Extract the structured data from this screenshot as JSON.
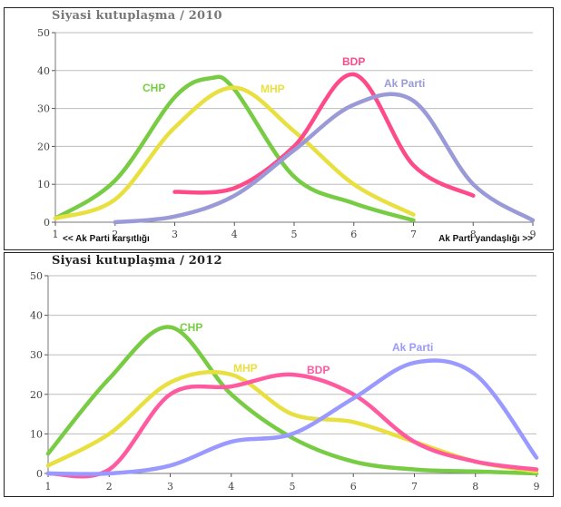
{
  "chart_data": [
    {
      "type": "line",
      "title": "Siyasi kutuplaşma / 2010",
      "ylim": [
        0,
        50
      ],
      "yticks": [
        0,
        10,
        20,
        30,
        40,
        50
      ],
      "xlim": [
        1,
        9
      ],
      "xticks": [
        1,
        2,
        3,
        4,
        5,
        6,
        7,
        8,
        9
      ],
      "annotations": {
        "left": "<< Ak Parti karşıtlığı",
        "right": "Ak Parti yandaşlığı >>"
      },
      "series": [
        {
          "name": "CHP",
          "color": "#77cc44",
          "x": [
            1,
            2,
            3,
            3.6,
            4,
            5,
            6,
            7
          ],
          "y": [
            1,
            11,
            33,
            38,
            35,
            12,
            5,
            0.5
          ]
        },
        {
          "name": "MHP",
          "color": "#e8e040",
          "x": [
            1,
            2,
            3,
            4,
            5,
            6,
            7
          ],
          "y": [
            1,
            6,
            25,
            35.5,
            24,
            10,
            2
          ]
        },
        {
          "name": "BDP",
          "color": "#ff4a8a",
          "x": [
            3,
            4,
            5,
            6,
            7,
            8
          ],
          "y": [
            8,
            9,
            20,
            39,
            15,
            7
          ]
        },
        {
          "name": "Ak Parti",
          "color": "#9a9ad8",
          "x": [
            2,
            3,
            4,
            5,
            6,
            7,
            8,
            9
          ],
          "y": [
            0,
            1.5,
            7,
            19,
            31,
            32,
            10,
            0.5
          ]
        }
      ]
    },
    {
      "type": "line",
      "title": "Siyasi kutuplaşma / 2012",
      "ylim": [
        0,
        50
      ],
      "yticks": [
        0,
        10,
        20,
        30,
        40,
        50
      ],
      "xlim": [
        1,
        9
      ],
      "xticks": [
        1,
        2,
        3,
        4,
        5,
        6,
        7,
        8,
        9
      ],
      "series": [
        {
          "name": "CHP",
          "color": "#77cc44",
          "x": [
            1,
            2,
            3,
            4,
            5,
            6,
            7,
            8,
            9
          ],
          "y": [
            5,
            24,
            37,
            20,
            9,
            3,
            1,
            0.5,
            0
          ]
        },
        {
          "name": "MHP",
          "color": "#e8e040",
          "x": [
            1,
            2,
            3,
            4,
            5,
            6,
            7,
            8,
            9
          ],
          "y": [
            2,
            10,
            23,
            25,
            15,
            13,
            8,
            3,
            0.5
          ]
        },
        {
          "name": "BDP",
          "color": "#ff5aa0",
          "x": [
            1,
            2,
            3,
            4,
            5,
            6,
            7,
            8,
            9
          ],
          "y": [
            0,
            1,
            20,
            22,
            25,
            20,
            8,
            3,
            1
          ]
        },
        {
          "name": "Ak Parti",
          "color": "#9999ff",
          "x": [
            1,
            2,
            3,
            4,
            5,
            6,
            7,
            8,
            9
          ],
          "y": [
            0,
            0,
            2,
            8,
            10,
            19,
            28,
            25,
            4
          ]
        }
      ]
    }
  ]
}
